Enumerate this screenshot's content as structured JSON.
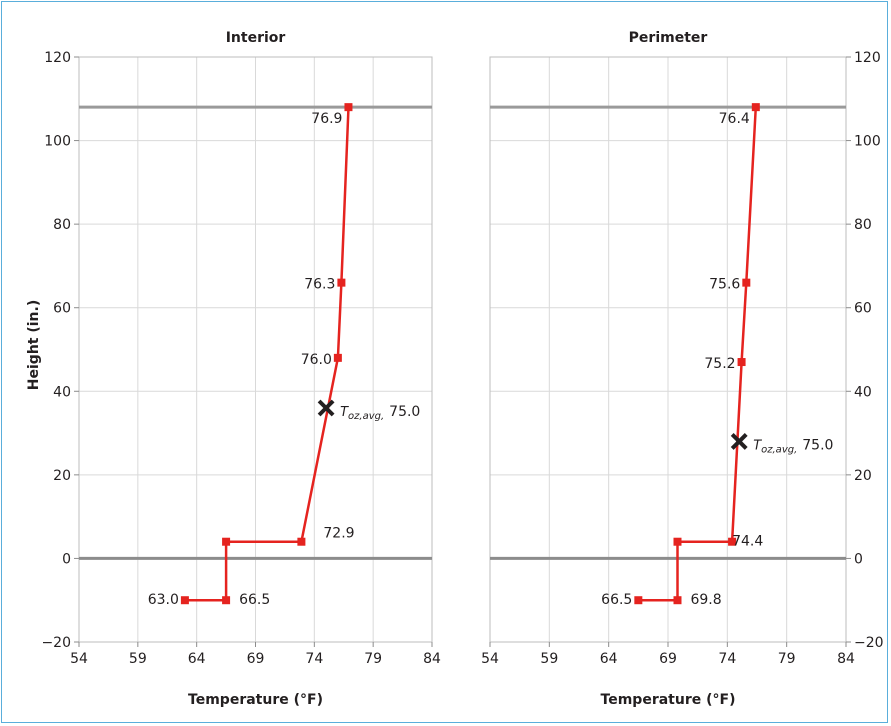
{
  "colors": {
    "line": "#e5231f",
    "marker": "#e5231f",
    "avg_marker": "#231f20",
    "grid": "#d9d9d9",
    "frame": "#5aaedb",
    "zero_line": "#8c8c8c",
    "ceiling_line": "#9a9a9a"
  },
  "chart_data": [
    {
      "type": "line",
      "title": "Interior",
      "xlabel": "Temperature (°F)",
      "ylabel": "Height (in.)",
      "xlim": [
        54,
        84
      ],
      "ylim": [
        -20,
        120
      ],
      "xticks": [
        54,
        59,
        64,
        69,
        74,
        79,
        84
      ],
      "yticks": [
        -20,
        0,
        20,
        40,
        60,
        80,
        100,
        120
      ],
      "grid": true,
      "reference_lines_y": [
        0,
        108
      ],
      "series": [
        {
          "points": [
            {
              "x": 63.0,
              "y": -10
            },
            {
              "x": 66.5,
              "y": -10
            },
            {
              "x": 66.5,
              "y": 4
            },
            {
              "x": 72.9,
              "y": 4
            },
            {
              "x": 76.0,
              "y": 48
            },
            {
              "x": 76.3,
              "y": 66
            },
            {
              "x": 76.9,
              "y": 108
            }
          ]
        }
      ],
      "data_labels": [
        {
          "x": 63.0,
          "y": -10,
          "text": "63.0"
        },
        {
          "x": 66.5,
          "y": -10,
          "text": "66.5"
        },
        {
          "x": 72.9,
          "y": 4,
          "text": "72.9"
        },
        {
          "x": 76.0,
          "y": 48,
          "text": "76.0"
        },
        {
          "x": 76.3,
          "y": 66,
          "text": "76.3"
        },
        {
          "x": 76.9,
          "y": 108,
          "text": "76.9"
        }
      ],
      "average": {
        "x": 75.0,
        "y": 36,
        "symbol": "T",
        "subscript": "oz,avg,",
        "value_label": "75.0"
      }
    },
    {
      "type": "line",
      "title": "Perimeter",
      "xlabel": "Temperature (°F)",
      "ylabel": "",
      "xlim": [
        54,
        84
      ],
      "ylim": [
        -20,
        120
      ],
      "xticks": [
        54,
        59,
        64,
        69,
        74,
        79,
        84
      ],
      "yticks": [
        -20,
        0,
        20,
        40,
        60,
        80,
        100,
        120
      ],
      "grid": true,
      "reference_lines_y": [
        0,
        108
      ],
      "series": [
        {
          "points": [
            {
              "x": 66.5,
              "y": -10
            },
            {
              "x": 69.8,
              "y": -10
            },
            {
              "x": 69.8,
              "y": 4
            },
            {
              "x": 74.4,
              "y": 4
            },
            {
              "x": 75.2,
              "y": 47
            },
            {
              "x": 75.6,
              "y": 66
            },
            {
              "x": 76.4,
              "y": 108
            }
          ]
        }
      ],
      "data_labels": [
        {
          "x": 66.5,
          "y": -10,
          "text": "66.5"
        },
        {
          "x": 69.8,
          "y": -10,
          "text": "69.8"
        },
        {
          "x": 74.4,
          "y": 4,
          "text": "74.4"
        },
        {
          "x": 75.2,
          "y": 47,
          "text": "75.2"
        },
        {
          "x": 75.6,
          "y": 66,
          "text": "75.6"
        },
        {
          "x": 76.4,
          "y": 108,
          "text": "76.4"
        }
      ],
      "average": {
        "x": 75.0,
        "y": 28,
        "symbol": "T",
        "subscript": "oz,avg,",
        "value_label": "75.0"
      }
    }
  ]
}
